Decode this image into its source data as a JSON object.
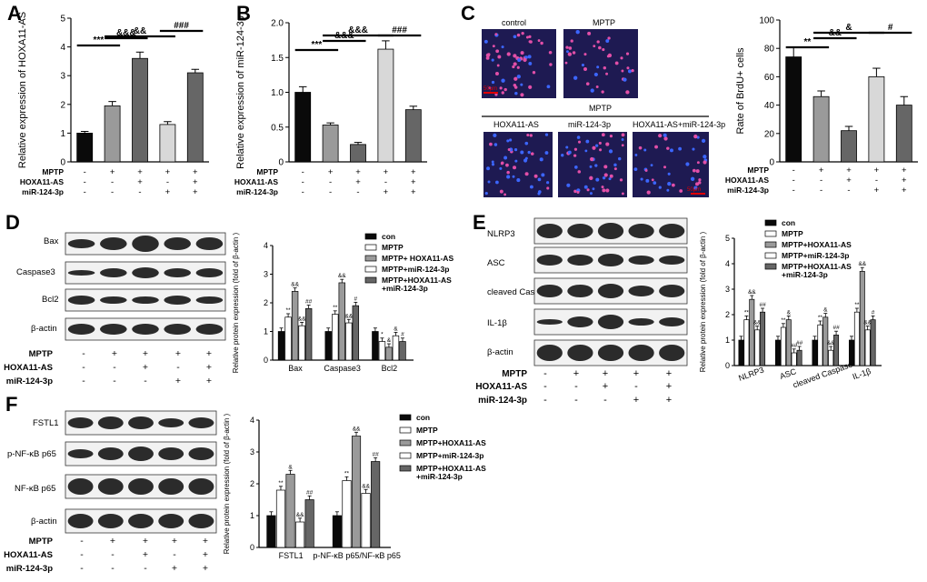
{
  "panel_labels": {
    "a": "A",
    "b": "B",
    "c": "C",
    "d": "D",
    "e": "E",
    "f": "F"
  },
  "conditions": {
    "mptp_label": "MPTP",
    "hoxa_label": "HOXA11-AS",
    "mir_label": "miR-124-3p",
    "mptp": [
      "-",
      "+",
      "+",
      "+",
      "+"
    ],
    "hoxa": [
      "-",
      "-",
      "+",
      "-",
      "+"
    ],
    "mir": [
      "-",
      "-",
      "-",
      "+",
      "+"
    ]
  },
  "colors": {
    "black": "#0a0a0a",
    "gray_dark": "#666666",
    "gray_mid": "#9a9a9a",
    "gray_light": "#d8d8d8",
    "white": "#ffffff",
    "cell_bg": "#1e1a52",
    "cell_pink": "#e24fa8",
    "cell_blue": "#3c66ff",
    "scalebar": "#e00000"
  },
  "if_images": {
    "top_labels": [
      "control",
      "MPTP"
    ],
    "group_label": "MPTP",
    "bottom_labels": [
      "HOXA11-AS",
      "miR-124-3p",
      "HOXA11-AS+miR-124-3p"
    ],
    "scalebar_text": "50μm"
  },
  "western_d": {
    "bands": [
      "Bax",
      "Caspase3",
      "Bcl2",
      "β-actin"
    ]
  },
  "western_e": {
    "bands": [
      "NLRP3",
      "ASC",
      "cleaved Caspase1",
      "IL-1β",
      "β-actin"
    ]
  },
  "western_f": {
    "bands": [
      "FSTL1",
      "p-NF-κB p65",
      "NF-κB p65",
      "β-actin"
    ]
  },
  "chart_data": [
    {
      "type": "bar",
      "panel": "A",
      "ylabel": "Relative expression of HOXA11-AS",
      "ylim": [
        0,
        5
      ],
      "yticks": [
        0,
        1,
        2,
        3,
        4,
        5
      ],
      "values": [
        1.0,
        1.95,
        3.6,
        1.3,
        3.1
      ],
      "errors": [
        0.06,
        0.15,
        0.22,
        0.1,
        0.12
      ],
      "fills": [
        "#0a0a0a",
        "#9a9a9a",
        "#666666",
        "#d8d8d8",
        "#666666"
      ],
      "significance": [
        {
          "text": "***",
          "from": 0,
          "to": 1,
          "level": 3
        },
        {
          "text": "&&&",
          "from": 1,
          "to": 2,
          "level": 1
        },
        {
          "text": "&&",
          "from": 1,
          "to": 3,
          "level": 2
        },
        {
          "text": "###",
          "from": 3,
          "to": 4,
          "level": 1
        }
      ]
    },
    {
      "type": "bar",
      "panel": "B",
      "ylabel": "Relative expression of miR-124-3p",
      "ylim": [
        0,
        2.0
      ],
      "yticks": [
        "0",
        "0.5",
        "1.0",
        "1.5",
        "2.0"
      ],
      "values": [
        1.0,
        0.53,
        0.25,
        1.62,
        0.75
      ],
      "errors": [
        0.08,
        0.03,
        0.03,
        0.12,
        0.05
      ],
      "fills": [
        "#0a0a0a",
        "#9a9a9a",
        "#666666",
        "#d8d8d8",
        "#666666"
      ],
      "significance": [
        {
          "text": "***",
          "from": 0,
          "to": 1,
          "level": 3
        },
        {
          "text": "&&&",
          "from": 1,
          "to": 2,
          "level": 2
        },
        {
          "text": "&&&",
          "from": 1,
          "to": 3,
          "level": 1
        },
        {
          "text": "###",
          "from": 3,
          "to": 4,
          "level": 1
        }
      ]
    },
    {
      "type": "bar",
      "panel": "C",
      "ylabel": "Rate of BrdU+ cells",
      "ylim": [
        0,
        100
      ],
      "yticks": [
        0,
        20,
        40,
        60,
        80,
        100
      ],
      "values": [
        74,
        46,
        22,
        60,
        40
      ],
      "errors": [
        7,
        4,
        3,
        6,
        6
      ],
      "fills": [
        "#0a0a0a",
        "#9a9a9a",
        "#666666",
        "#d8d8d8",
        "#666666"
      ],
      "significance": [
        {
          "text": "**",
          "from": 0,
          "to": 1,
          "level": 3
        },
        {
          "text": "&&",
          "from": 1,
          "to": 2,
          "level": 2
        },
        {
          "text": "&",
          "from": 1,
          "to": 3,
          "level": 1
        },
        {
          "text": "#",
          "from": 3,
          "to": 4,
          "level": 1
        }
      ]
    },
    {
      "type": "bar",
      "panel": "D",
      "ylabel": "Relative protein expression (fold of β-actin )",
      "ylim": [
        0,
        4
      ],
      "yticks": [
        0,
        1,
        2,
        3,
        4
      ],
      "categories": [
        "Bax",
        "Caspase3",
        "Bcl2"
      ],
      "series": [
        {
          "name": "con",
          "values": [
            1.0,
            1.0,
            1.0
          ]
        },
        {
          "name": "MPTP",
          "values": [
            1.5,
            1.6,
            0.65
          ]
        },
        {
          "name": "MPTP+ HOXA11-AS",
          "values": [
            2.4,
            2.7,
            0.45
          ]
        },
        {
          "name": "MPTP+miR-124-3p",
          "values": [
            1.2,
            1.3,
            0.85
          ]
        },
        {
          "name": "MPTP+HOXA11-AS +miR-124-3p",
          "values": [
            1.8,
            1.9,
            0.65
          ]
        }
      ],
      "annotations": [
        [
          "",
          "**",
          "&&",
          "&&",
          "##"
        ],
        [
          "",
          "**",
          "&&",
          "&&",
          "#"
        ],
        [
          "",
          "*",
          "&",
          "&",
          "#"
        ]
      ]
    },
    {
      "type": "bar",
      "panel": "E",
      "ylabel": "Relative protein expression (fold of β-actin )",
      "ylim": [
        0,
        5
      ],
      "yticks": [
        0,
        1,
        2,
        3,
        4,
        5
      ],
      "categories": [
        "NLRP3",
        "ASC",
        "cleaved Caspase1",
        "IL-1β"
      ],
      "series": [
        {
          "name": "con",
          "values": [
            1.0,
            1.0,
            1.0,
            1.0
          ]
        },
        {
          "name": "MPTP",
          "values": [
            1.8,
            1.5,
            1.6,
            2.1
          ]
        },
        {
          "name": "MPTP+HOXA11-AS",
          "values": [
            2.6,
            1.8,
            1.9,
            3.7
          ]
        },
        {
          "name": "MPTP+miR-124-3p",
          "values": [
            1.4,
            0.5,
            0.6,
            1.4
          ]
        },
        {
          "name": "MPTP+HOXA11-AS +miR-124-3p",
          "values": [
            2.1,
            0.6,
            1.2,
            1.8
          ]
        }
      ],
      "annotations": [
        [
          "",
          "**",
          "&&",
          "&&",
          "##"
        ],
        [
          "",
          "**",
          "&",
          "##",
          "##"
        ],
        [
          "",
          "**",
          "&",
          "&&",
          "##"
        ],
        [
          "",
          "**",
          "&&",
          "&&",
          "#"
        ]
      ]
    },
    {
      "type": "bar",
      "panel": "F",
      "ylabel": "Relative protein expression (fold of β-actin )",
      "ylim": [
        0,
        4
      ],
      "yticks": [
        0,
        1,
        2,
        3,
        4
      ],
      "categories": [
        "FSTL1",
        "p-NF-κB p65/NF-κB p65"
      ],
      "series": [
        {
          "name": "con",
          "values": [
            1.0,
            1.0
          ]
        },
        {
          "name": "MPTP",
          "values": [
            1.8,
            2.1
          ]
        },
        {
          "name": "MPTP+HOXA11-AS",
          "values": [
            2.3,
            3.5
          ]
        },
        {
          "name": "MPTP+miR-124-3p",
          "values": [
            0.8,
            1.7
          ]
        },
        {
          "name": "MPTP+HOXA11-AS +miR-124-3p",
          "values": [
            1.5,
            2.7
          ]
        }
      ],
      "annotations": [
        [
          "",
          "**",
          "&",
          "&&",
          "##"
        ],
        [
          "",
          "**",
          "&&",
          "&&",
          "##"
        ]
      ]
    }
  ]
}
